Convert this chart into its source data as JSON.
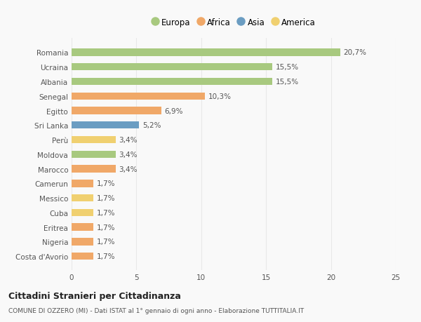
{
  "countries": [
    "Romania",
    "Ucraina",
    "Albania",
    "Senegal",
    "Egitto",
    "Sri Lanka",
    "Perù",
    "Moldova",
    "Marocco",
    "Camerun",
    "Messico",
    "Cuba",
    "Eritrea",
    "Nigeria",
    "Costa d'Avorio"
  ],
  "values": [
    20.7,
    15.5,
    15.5,
    10.3,
    6.9,
    5.2,
    3.4,
    3.4,
    3.4,
    1.7,
    1.7,
    1.7,
    1.7,
    1.7,
    1.7
  ],
  "labels": [
    "20,7%",
    "15,5%",
    "15,5%",
    "10,3%",
    "6,9%",
    "5,2%",
    "3,4%",
    "3,4%",
    "3,4%",
    "1,7%",
    "1,7%",
    "1,7%",
    "1,7%",
    "1,7%",
    "1,7%"
  ],
  "continents": [
    "Europa",
    "Europa",
    "Europa",
    "Africa",
    "Africa",
    "Asia",
    "America",
    "Europa",
    "Africa",
    "Africa",
    "America",
    "America",
    "Africa",
    "Africa",
    "Africa"
  ],
  "colors": {
    "Europa": "#a8c97f",
    "Africa": "#f0a868",
    "Asia": "#6b9dc2",
    "America": "#f0d070"
  },
  "legend_order": [
    "Europa",
    "Africa",
    "Asia",
    "America"
  ],
  "title": "Cittadini Stranieri per Cittadinanza",
  "subtitle": "COMUNE DI OZZERO (MI) - Dati ISTAT al 1° gennaio di ogni anno - Elaborazione TUTTITALIA.IT",
  "xlim": [
    0,
    25
  ],
  "xticks": [
    0,
    5,
    10,
    15,
    20,
    25
  ],
  "background_color": "#f9f9f9",
  "grid_color": "#e8e8e8",
  "bar_height": 0.5
}
